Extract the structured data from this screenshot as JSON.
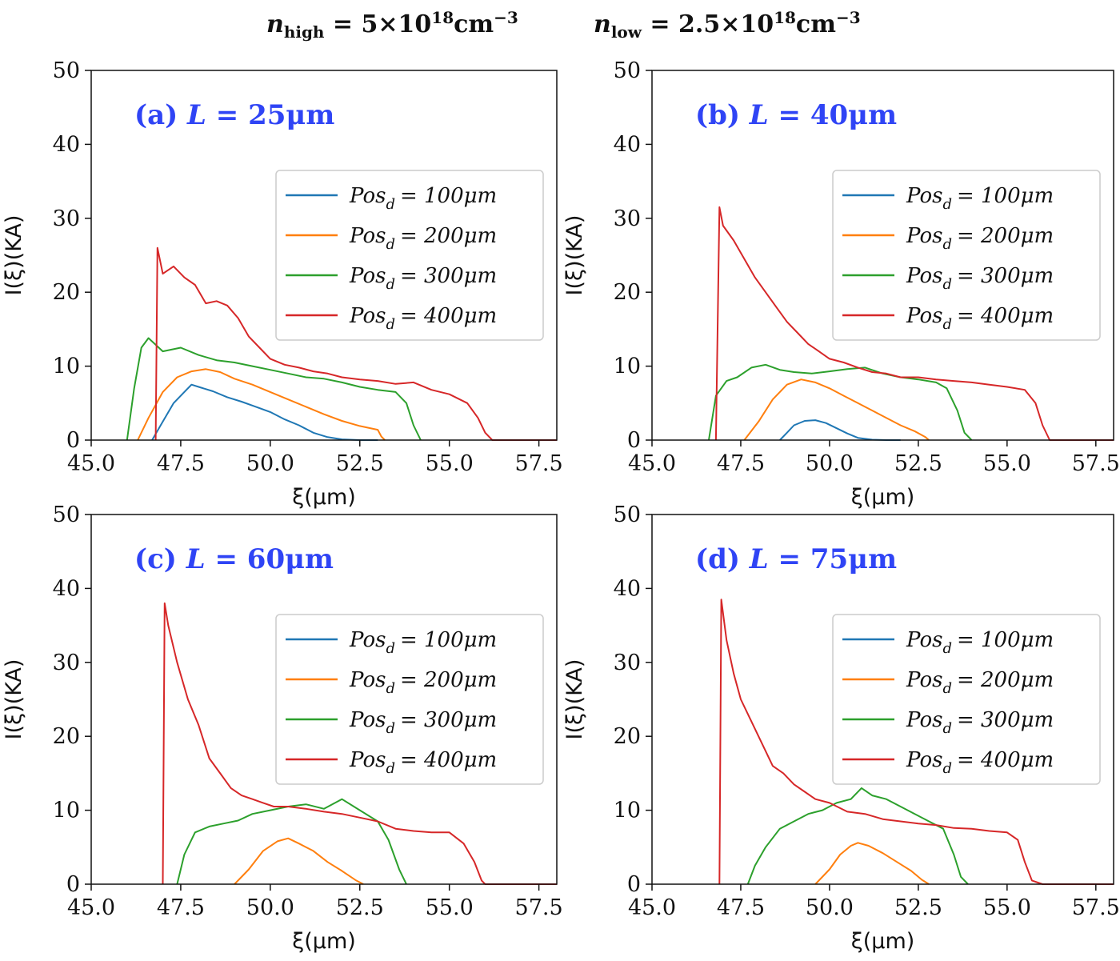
{
  "header": {
    "n_high_symbol": "n",
    "n_high_subscript": "high",
    "n_high_value": "5×10",
    "n_high_exponent": "18",
    "n_high_unit": "cm",
    "n_high_unit_exponent": "−3",
    "n_low_symbol": "n",
    "n_low_subscript": "low",
    "n_low_value": "2.5×10",
    "n_low_exponent": "18",
    "n_low_unit": "cm",
    "n_low_unit_exponent": "−3"
  },
  "colors": {
    "Pos_d = 100μm": "#1f77b4",
    "Pos_d = 200μm": "#ff7f0e",
    "Pos_d = 300μm": "#2ca02c",
    "Pos_d = 400μm": "#d62728",
    "panel_title": "#2f44f5"
  },
  "chart_data": [
    {
      "type": "line",
      "panel_label": "(a)",
      "title_var": "L",
      "title_value": "= 25μm",
      "xlabel": "ξ(μm)",
      "ylabel": "I(ξ)(KA)",
      "xlim": [
        45.0,
        58.0
      ],
      "ylim": [
        0,
        50
      ],
      "xticks": [
        "45.0",
        "47.5",
        "50.0",
        "52.5",
        "55.0",
        "57.5"
      ],
      "yticks": [
        "0",
        "10",
        "20",
        "30",
        "40",
        "50"
      ],
      "grid": false,
      "legend_position": "center-right",
      "series": [
        {
          "name_var": "Pos",
          "name_sub": "d",
          "name_value": "= 100μm",
          "x": [
            46.7,
            47.0,
            47.3,
            47.6,
            47.8,
            48.0,
            48.4,
            48.8,
            49.2,
            49.6,
            50.0,
            50.4,
            50.8,
            51.2,
            51.6,
            52.0,
            52.5,
            53.0
          ],
          "y": [
            0,
            2.5,
            5.0,
            6.5,
            7.5,
            7.2,
            6.6,
            5.8,
            5.2,
            4.5,
            3.8,
            2.8,
            2.0,
            1.0,
            0.4,
            0.1,
            0,
            0
          ]
        },
        {
          "name_var": "Pos",
          "name_sub": "d",
          "name_value": "= 200μm",
          "x": [
            46.3,
            46.6,
            47.0,
            47.4,
            47.8,
            48.2,
            48.6,
            49.0,
            49.5,
            50.0,
            50.5,
            51.0,
            51.5,
            52.0,
            52.5,
            53.0,
            53.1,
            53.2
          ],
          "y": [
            0,
            3.0,
            6.5,
            8.5,
            9.3,
            9.6,
            9.2,
            8.3,
            7.5,
            6.5,
            5.5,
            4.5,
            3.5,
            2.6,
            1.9,
            1.4,
            0.5,
            0
          ]
        },
        {
          "name_var": "Pos",
          "name_sub": "d",
          "name_value": "= 300μm",
          "x": [
            46.0,
            46.2,
            46.4,
            46.6,
            47.0,
            47.5,
            48.0,
            48.5,
            49.0,
            49.5,
            50.0,
            50.5,
            51.0,
            51.5,
            52.0,
            52.5,
            53.0,
            53.5,
            53.8,
            54.0,
            54.2
          ],
          "y": [
            0,
            7.0,
            12.5,
            13.8,
            12.0,
            12.5,
            11.5,
            10.8,
            10.5,
            10.0,
            9.5,
            9.0,
            8.5,
            8.3,
            7.8,
            7.2,
            6.8,
            6.5,
            5.0,
            2.0,
            0
          ]
        },
        {
          "name_var": "Pos",
          "name_sub": "d",
          "name_value": "= 400μm",
          "x": [
            46.8,
            46.85,
            47.0,
            47.3,
            47.6,
            47.9,
            48.2,
            48.5,
            48.8,
            49.1,
            49.4,
            49.7,
            50.0,
            50.4,
            50.8,
            51.2,
            51.6,
            52.0,
            52.5,
            53.0,
            53.5,
            54.0,
            54.5,
            55.0,
            55.5,
            55.8,
            56.0,
            56.2,
            57.0,
            58.0
          ],
          "y": [
            0,
            26.0,
            22.5,
            23.5,
            22.0,
            21.0,
            18.5,
            18.8,
            18.2,
            16.5,
            14.0,
            12.5,
            11.0,
            10.2,
            9.8,
            9.3,
            9.0,
            8.5,
            8.2,
            8.0,
            7.6,
            7.8,
            6.8,
            6.2,
            5.0,
            3.0,
            1.0,
            0,
            0,
            0
          ]
        }
      ]
    },
    {
      "type": "line",
      "panel_label": "(b)",
      "title_var": "L",
      "title_value": "= 40μm",
      "xlabel": "ξ(μm)",
      "ylabel": "I(ξ)(KA)",
      "xlim": [
        45.0,
        58.0
      ],
      "ylim": [
        0,
        50
      ],
      "xticks": [
        "45.0",
        "47.5",
        "50.0",
        "52.5",
        "55.0",
        "57.5"
      ],
      "yticks": [
        "0",
        "10",
        "20",
        "30",
        "40",
        "50"
      ],
      "grid": false,
      "legend_position": "center-right",
      "series": [
        {
          "name_var": "Pos",
          "name_sub": "d",
          "name_value": "= 100μm",
          "x": [
            48.6,
            48.8,
            49.0,
            49.3,
            49.6,
            49.9,
            50.2,
            50.5,
            50.8,
            51.2,
            51.6,
            52.0
          ],
          "y": [
            0,
            1.0,
            2.0,
            2.6,
            2.7,
            2.3,
            1.6,
            0.9,
            0.3,
            0.05,
            0,
            0
          ]
        },
        {
          "name_var": "Pos",
          "name_sub": "d",
          "name_value": "= 200μm",
          "x": [
            47.6,
            48.0,
            48.4,
            48.8,
            49.2,
            49.6,
            50.0,
            50.4,
            50.8,
            51.2,
            51.6,
            52.0,
            52.4,
            52.7,
            52.8
          ],
          "y": [
            0,
            2.5,
            5.5,
            7.5,
            8.2,
            7.8,
            7.0,
            6.0,
            5.0,
            4.0,
            3.0,
            2.0,
            1.2,
            0.4,
            0
          ]
        },
        {
          "name_var": "Pos",
          "name_sub": "d",
          "name_value": "= 300μm",
          "x": [
            46.6,
            46.8,
            47.1,
            47.4,
            47.8,
            48.2,
            48.6,
            49.0,
            49.5,
            50.0,
            50.5,
            51.0,
            51.5,
            52.0,
            52.5,
            53.0,
            53.3,
            53.6,
            53.8,
            54.0
          ],
          "y": [
            0,
            6.0,
            8.0,
            8.5,
            9.8,
            10.2,
            9.5,
            9.2,
            9.0,
            9.3,
            9.6,
            9.8,
            9.0,
            8.5,
            8.2,
            7.8,
            7.0,
            4.0,
            1.0,
            0
          ]
        },
        {
          "name_var": "Pos",
          "name_sub": "d",
          "name_value": "= 400μm",
          "x": [
            46.8,
            46.9,
            47.0,
            47.3,
            47.6,
            47.9,
            48.2,
            48.5,
            48.8,
            49.1,
            49.4,
            49.7,
            50.0,
            50.4,
            50.8,
            51.2,
            51.6,
            52.0,
            52.5,
            53.0,
            53.5,
            54.0,
            54.5,
            55.0,
            55.5,
            55.8,
            56.0,
            56.2,
            57.0,
            58.0
          ],
          "y": [
            0,
            31.5,
            29.0,
            27.0,
            24.5,
            22.0,
            20.0,
            18.0,
            16.0,
            14.5,
            13.0,
            12.0,
            11.0,
            10.5,
            9.8,
            9.2,
            9.0,
            8.5,
            8.5,
            8.2,
            8.0,
            7.8,
            7.5,
            7.2,
            6.8,
            5.0,
            2.0,
            0,
            0,
            0
          ]
        }
      ]
    },
    {
      "type": "line",
      "panel_label": "(c)",
      "title_var": "L",
      "title_value": "= 60μm",
      "xlabel": "ξ(μm)",
      "ylabel": "I(ξ)(KA)",
      "xlim": [
        45.0,
        58.0
      ],
      "ylim": [
        0,
        50
      ],
      "xticks": [
        "45.0",
        "47.5",
        "50.0",
        "52.5",
        "55.0",
        "57.5"
      ],
      "yticks": [
        "0",
        "10",
        "20",
        "30",
        "40",
        "50"
      ],
      "grid": false,
      "legend_position": "center-right",
      "series": [
        {
          "name_var": "Pos",
          "name_sub": "d",
          "name_value": "= 100μm",
          "x": [],
          "y": []
        },
        {
          "name_var": "Pos",
          "name_sub": "d",
          "name_value": "= 200μm",
          "x": [
            49.0,
            49.4,
            49.8,
            50.2,
            50.5,
            50.8,
            51.2,
            51.6,
            52.0,
            52.4,
            52.6
          ],
          "y": [
            0,
            2.0,
            4.5,
            5.8,
            6.2,
            5.5,
            4.5,
            3.0,
            1.8,
            0.5,
            0
          ]
        },
        {
          "name_var": "Pos",
          "name_sub": "d",
          "name_value": "= 300μm",
          "x": [
            47.4,
            47.6,
            47.9,
            48.3,
            48.7,
            49.1,
            49.5,
            50.0,
            50.5,
            51.0,
            51.5,
            52.0,
            52.5,
            53.0,
            53.3,
            53.6,
            53.8
          ],
          "y": [
            0,
            4.0,
            7.0,
            7.8,
            8.2,
            8.6,
            9.5,
            10.0,
            10.5,
            10.8,
            10.2,
            11.5,
            10.0,
            8.5,
            6.0,
            2.0,
            0
          ]
        },
        {
          "name_var": "Pos",
          "name_sub": "d",
          "name_value": "= 400μm",
          "x": [
            47.0,
            47.05,
            47.15,
            47.4,
            47.7,
            48.0,
            48.3,
            48.6,
            48.9,
            49.2,
            49.5,
            49.8,
            50.1,
            50.5,
            51.0,
            51.5,
            52.0,
            52.5,
            53.0,
            53.5,
            54.0,
            54.5,
            55.0,
            55.4,
            55.7,
            55.9,
            56.0,
            57.0,
            58.0
          ],
          "y": [
            0,
            38.0,
            35.0,
            30.0,
            25.0,
            21.5,
            17.0,
            15.0,
            13.0,
            12.0,
            11.5,
            11.0,
            10.5,
            10.5,
            10.2,
            9.8,
            9.5,
            9.0,
            8.5,
            7.5,
            7.2,
            7.0,
            7.0,
            5.5,
            3.0,
            0.5,
            0,
            0,
            0
          ]
        }
      ]
    },
    {
      "type": "line",
      "panel_label": "(d)",
      "title_var": "L",
      "title_value": "= 75μm",
      "xlabel": "ξ(μm)",
      "ylabel": "I(ξ)(KA)",
      "xlim": [
        45.0,
        58.0
      ],
      "ylim": [
        0,
        50
      ],
      "xticks": [
        "45.0",
        "47.5",
        "50.0",
        "52.5",
        "55.0",
        "57.5"
      ],
      "yticks": [
        "0",
        "10",
        "20",
        "30",
        "40",
        "50"
      ],
      "grid": false,
      "legend_position": "center-right",
      "series": [
        {
          "name_var": "Pos",
          "name_sub": "d",
          "name_value": "= 100μm",
          "x": [],
          "y": []
        },
        {
          "name_var": "Pos",
          "name_sub": "d",
          "name_value": "= 200μm",
          "x": [
            49.6,
            50.0,
            50.3,
            50.6,
            50.8,
            51.1,
            51.5,
            51.9,
            52.3,
            52.6,
            52.8
          ],
          "y": [
            0,
            2.0,
            4.0,
            5.2,
            5.6,
            5.2,
            4.2,
            3.0,
            1.8,
            0.6,
            0
          ]
        },
        {
          "name_var": "Pos",
          "name_sub": "d",
          "name_value": "= 300μm",
          "x": [
            47.7,
            47.9,
            48.2,
            48.6,
            49.0,
            49.4,
            49.8,
            50.2,
            50.6,
            50.9,
            51.2,
            51.6,
            52.0,
            52.4,
            52.8,
            53.2,
            53.5,
            53.7,
            53.9
          ],
          "y": [
            0,
            2.5,
            5.0,
            7.5,
            8.5,
            9.5,
            10.0,
            11.0,
            11.5,
            13.0,
            12.0,
            11.5,
            10.5,
            9.5,
            8.5,
            7.5,
            4.0,
            1.0,
            0
          ]
        },
        {
          "name_var": "Pos",
          "name_sub": "d",
          "name_value": "= 400μm",
          "x": [
            46.9,
            46.95,
            47.1,
            47.3,
            47.5,
            47.8,
            48.1,
            48.4,
            48.7,
            49.0,
            49.3,
            49.6,
            50.0,
            50.5,
            51.0,
            51.5,
            52.0,
            52.5,
            53.0,
            53.5,
            54.0,
            54.5,
            55.0,
            55.3,
            55.5,
            55.7,
            56.0,
            57.0,
            58.0
          ],
          "y": [
            0,
            38.5,
            33.0,
            28.5,
            25.0,
            22.0,
            19.0,
            16.0,
            15.0,
            13.5,
            12.5,
            11.5,
            11.0,
            9.8,
            9.5,
            8.8,
            8.5,
            8.2,
            8.0,
            7.6,
            7.5,
            7.2,
            7.0,
            6.0,
            3.0,
            0.5,
            0,
            0,
            0
          ]
        }
      ]
    }
  ]
}
